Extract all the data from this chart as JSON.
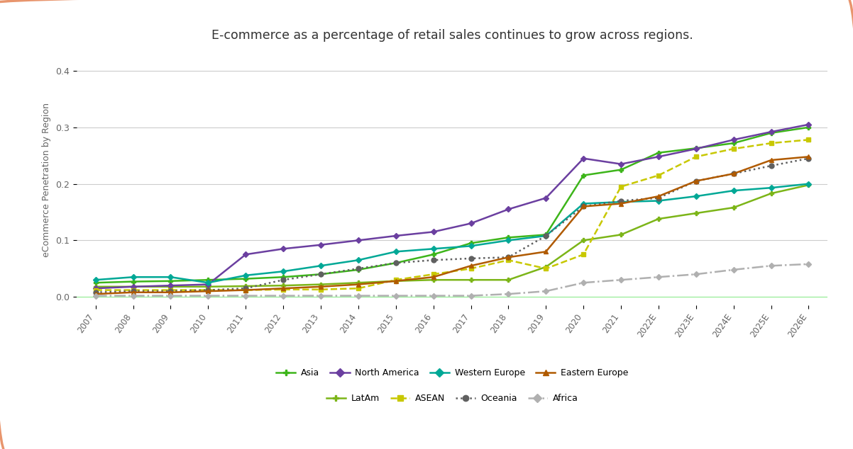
{
  "title": "E-commerce as a percentage of retail sales continues to grow across regions.",
  "ylabel": "eCommerce Penetration by Region",
  "background_color": "#ffffff",
  "border_color": "#e8956d",
  "x_labels": [
    "2007",
    "2008",
    "2009",
    "2010",
    "2011",
    "2012",
    "2013",
    "2014",
    "2015",
    "2016",
    "2017",
    "2018",
    "2019",
    "2020",
    "2021",
    "2022E",
    "2023E",
    "2024E",
    "2025E",
    "2026E"
  ],
  "yticks": [
    0.0,
    0.1,
    0.2,
    0.3,
    0.4
  ],
  "series": {
    "Asia": {
      "color": "#3db51a",
      "linestyle": "-",
      "marker": "P",
      "markersize": 5,
      "linewidth": 1.8,
      "values": [
        0.025,
        0.027,
        0.028,
        0.03,
        0.032,
        0.035,
        0.04,
        0.048,
        0.06,
        0.075,
        0.095,
        0.105,
        0.11,
        0.215,
        0.225,
        0.255,
        0.263,
        0.272,
        0.29,
        0.3
      ]
    },
    "LatAm": {
      "color": "#7cb518",
      "linestyle": "-",
      "marker": "P",
      "markersize": 5,
      "linewidth": 1.8,
      "values": [
        0.018,
        0.018,
        0.018,
        0.018,
        0.019,
        0.02,
        0.022,
        0.025,
        0.028,
        0.03,
        0.03,
        0.03,
        0.053,
        0.1,
        0.11,
        0.138,
        0.148,
        0.158,
        0.183,
        0.198
      ]
    },
    "North America": {
      "color": "#6b3fa0",
      "linestyle": "-",
      "marker": "D",
      "markersize": 4,
      "linewidth": 1.8,
      "values": [
        0.015,
        0.018,
        0.02,
        0.022,
        0.075,
        0.085,
        0.092,
        0.1,
        0.108,
        0.115,
        0.13,
        0.155,
        0.175,
        0.245,
        0.235,
        0.248,
        0.262,
        0.278,
        0.292,
        0.305
      ]
    },
    "ASEAN": {
      "color": "#c8c800",
      "linestyle": "--",
      "marker": "s",
      "markersize": 5,
      "linewidth": 1.8,
      "values": [
        0.012,
        0.012,
        0.012,
        0.012,
        0.012,
        0.013,
        0.013,
        0.015,
        0.03,
        0.04,
        0.05,
        0.065,
        0.05,
        0.075,
        0.195,
        0.215,
        0.248,
        0.262,
        0.272,
        0.278
      ]
    },
    "Western Europe": {
      "color": "#00a896",
      "linestyle": "-",
      "marker": "D",
      "markersize": 4,
      "linewidth": 1.8,
      "values": [
        0.03,
        0.035,
        0.035,
        0.025,
        0.038,
        0.045,
        0.055,
        0.065,
        0.08,
        0.085,
        0.09,
        0.1,
        0.108,
        0.165,
        0.168,
        0.17,
        0.178,
        0.188,
        0.193,
        0.2
      ]
    },
    "Oceania": {
      "color": "#606060",
      "linestyle": ":",
      "marker": "o",
      "markersize": 5,
      "linewidth": 1.8,
      "values": [
        0.008,
        0.01,
        0.01,
        0.012,
        0.015,
        0.03,
        0.04,
        0.05,
        0.06,
        0.065,
        0.068,
        0.07,
        0.108,
        0.16,
        0.17,
        0.175,
        0.205,
        0.218,
        0.232,
        0.245
      ]
    },
    "Eastern Europe": {
      "color": "#b05a00",
      "linestyle": "-",
      "marker": "^",
      "markersize": 5,
      "linewidth": 1.8,
      "values": [
        0.005,
        0.008,
        0.008,
        0.01,
        0.012,
        0.015,
        0.018,
        0.022,
        0.028,
        0.035,
        0.055,
        0.07,
        0.08,
        0.16,
        0.165,
        0.178,
        0.205,
        0.218,
        0.242,
        0.248
      ]
    },
    "Africa": {
      "color": "#b0b0b0",
      "linestyle": "-.",
      "marker": "D",
      "markersize": 4,
      "linewidth": 1.8,
      "values": [
        0.002,
        0.002,
        0.002,
        0.002,
        0.002,
        0.002,
        0.002,
        0.002,
        0.002,
        0.002,
        0.002,
        0.005,
        0.01,
        0.025,
        0.03,
        0.035,
        0.04,
        0.048,
        0.055,
        0.058
      ]
    }
  },
  "legend_row1": [
    "Asia",
    "North America",
    "Western Europe",
    "Eastern Europe"
  ],
  "legend_row2": [
    "LatAm",
    "ASEAN",
    "Oceania",
    "Africa"
  ]
}
